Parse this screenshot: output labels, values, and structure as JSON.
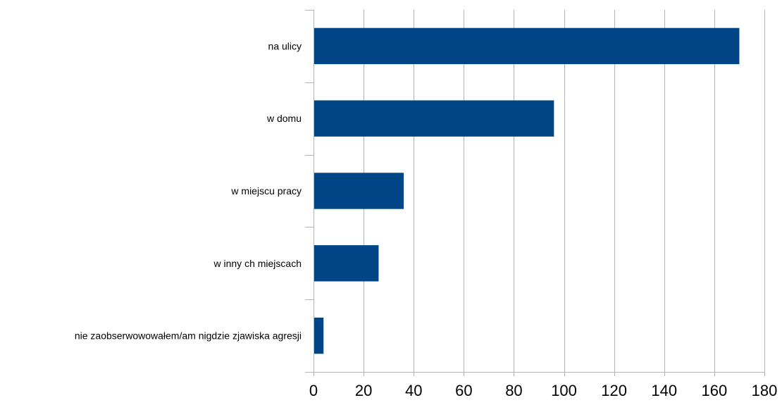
{
  "chart_data": {
    "type": "bar",
    "orientation": "horizontal",
    "categories": [
      "na ulicy",
      "w domu",
      "w miejscu pracy",
      "w inny ch miejscach",
      "nie zaobserwowowałem/am nigdzie zjawiska agresji"
    ],
    "values": [
      170,
      96,
      36,
      26,
      4
    ],
    "xlim": [
      0,
      180
    ],
    "xticks": [
      0,
      20,
      40,
      60,
      80,
      100,
      120,
      140,
      160,
      180
    ],
    "grid": true,
    "bar_color": "#004586",
    "title": "",
    "xlabel": "",
    "ylabel": ""
  }
}
